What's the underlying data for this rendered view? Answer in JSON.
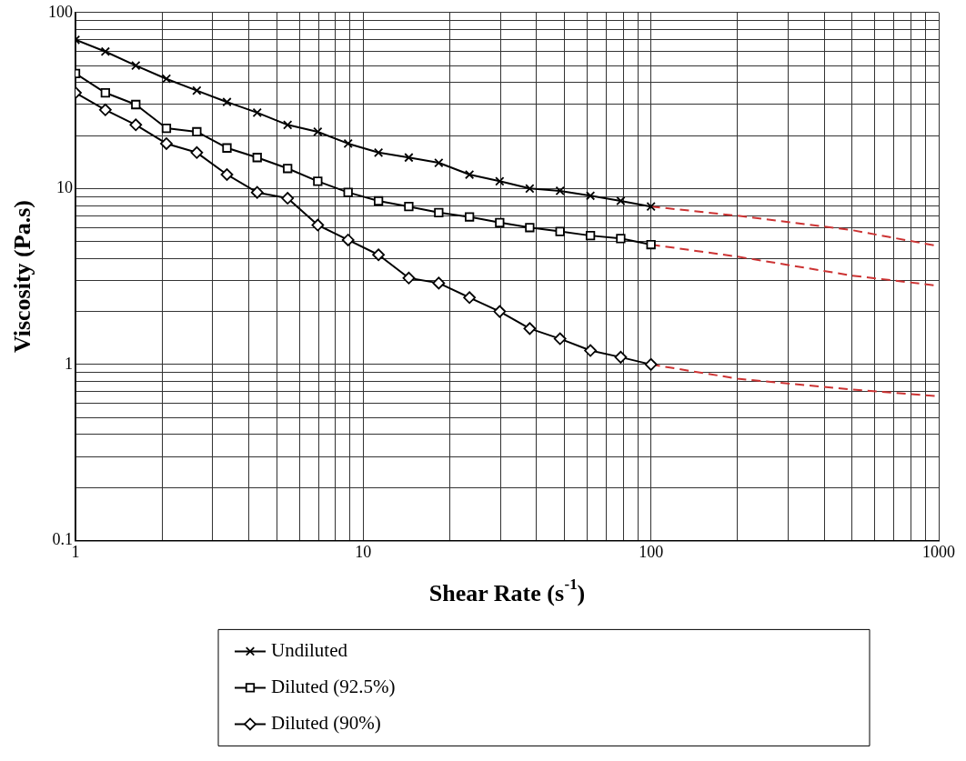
{
  "chart_data": {
    "type": "line",
    "xlabel": "Shear Rate (s$^{-1}$)",
    "ylabel": "Viscosity (Pa.s)",
    "log": "xy",
    "grid": true,
    "legend": "bottom",
    "xlim": [
      1,
      1000
    ],
    "ylim": [
      0.1,
      100
    ],
    "xticks": [
      1,
      {
        "value": 2,
        "label": null
      },
      {
        "value": 3,
        "label": null
      },
      {
        "value": 4,
        "label": null
      },
      {
        "value": 5,
        "label": null
      },
      {
        "value": 6,
        "label": null
      },
      {
        "value": 7,
        "label": null
      },
      {
        "value": 8,
        "label": null
      },
      {
        "value": 9,
        "label": null
      },
      10,
      {
        "value": 20,
        "label": null
      },
      {
        "value": 30,
        "label": null
      },
      {
        "value": 40,
        "label": null
      },
      {
        "value": 50,
        "label": null
      },
      {
        "value": 60,
        "label": null
      },
      {
        "value": 70,
        "label": null
      },
      {
        "value": 80,
        "label": null
      },
      {
        "value": 90,
        "label": null
      },
      100,
      {
        "value": 200,
        "label": null
      },
      {
        "value": 300,
        "label": null
      },
      {
        "value": 400,
        "label": null
      },
      {
        "value": 500,
        "label": null
      },
      {
        "value": 600,
        "label": null
      },
      {
        "value": 700,
        "label": null
      },
      {
        "value": 800,
        "label": null
      },
      {
        "value": 900,
        "label": null
      },
      1000
    ],
    "yticks": [
      0.1,
      {
        "value": 0.2,
        "label": null
      },
      {
        "value": 0.3,
        "label": null
      },
      {
        "value": 0.4,
        "label": null
      },
      {
        "value": 0.5,
        "label": null
      },
      {
        "value": 0.6,
        "label": null
      },
      {
        "value": 0.7,
        "label": null
      },
      {
        "value": 0.8,
        "label": null
      },
      {
        "value": 0.9,
        "label": null
      },
      1,
      {
        "value": 2,
        "label": null
      },
      {
        "value": 3,
        "label": null
      },
      {
        "value": 4,
        "label": null
      },
      {
        "value": 5,
        "label": null
      },
      {
        "value": 6,
        "label": null
      },
      {
        "value": 7,
        "label": null
      },
      {
        "value": 8,
        "label": null
      },
      {
        "value": 9,
        "label": null
      },
      10,
      {
        "value": 20,
        "label": null
      },
      {
        "value": 30,
        "label": null
      },
      {
        "value": 40,
        "label": null
      },
      {
        "value": 50,
        "label": null
      },
      {
        "value": 60,
        "label": null
      },
      {
        "value": 70,
        "label": null
      },
      {
        "value": 80,
        "label": null
      },
      {
        "value": 90,
        "label": null
      },
      100
    ],
    "x": [
      1,
      1.27,
      1.62,
      2.07,
      2.64,
      3.36,
      4.28,
      5.46,
      6.95,
      8.86,
      11.3,
      14.4,
      18.3,
      23.4,
      29.8,
      37.9,
      48.3,
      61.6,
      78.5,
      100
    ],
    "series": [
      {
        "name": "Undiluted",
        "color": "#000000",
        "marker": "cross",
        "values": [
          70,
          60,
          50,
          42,
          36,
          31,
          27,
          23,
          21,
          18,
          16,
          15,
          14,
          12,
          11,
          10,
          9.7,
          9.1,
          8.5,
          7.9
        ]
      },
      {
        "name": "Diluted (92.5%)",
        "color": "#000000",
        "marker": "square",
        "values": [
          45,
          35,
          30,
          22,
          21,
          17,
          15,
          13,
          11,
          9.5,
          8.5,
          7.9,
          7.3,
          6.9,
          6.4,
          6.0,
          5.7,
          5.4,
          5.2,
          4.8
        ]
      },
      {
        "name": "Diluted (90%)",
        "color": "#000000",
        "marker": "diamond",
        "values": [
          35,
          28,
          23,
          18,
          16,
          12,
          9.5,
          8.8,
          6.2,
          5.1,
          4.2,
          3.1,
          2.9,
          2.4,
          2.0,
          1.6,
          1.4,
          1.2,
          1.1,
          1.0
        ]
      },
      {
        "color": "#cc3333",
        "marker": "none",
        "line_style": "dashed",
        "x": [
          100,
          200,
          500,
          1000
        ],
        "values": [
          7.9,
          7.0,
          5.8,
          4.7
        ]
      },
      {
        "color": "#cc3333",
        "marker": "none",
        "line_style": "dashed",
        "x": [
          100,
          200,
          500,
          1000
        ],
        "values": [
          4.8,
          4.1,
          3.2,
          2.8
        ]
      },
      {
        "color": "#cc3333",
        "marker": "none",
        "line_style": "dashed",
        "x": [
          100,
          200,
          500,
          1000
        ],
        "values": [
          1.0,
          0.83,
          0.72,
          0.66
        ]
      }
    ]
  }
}
